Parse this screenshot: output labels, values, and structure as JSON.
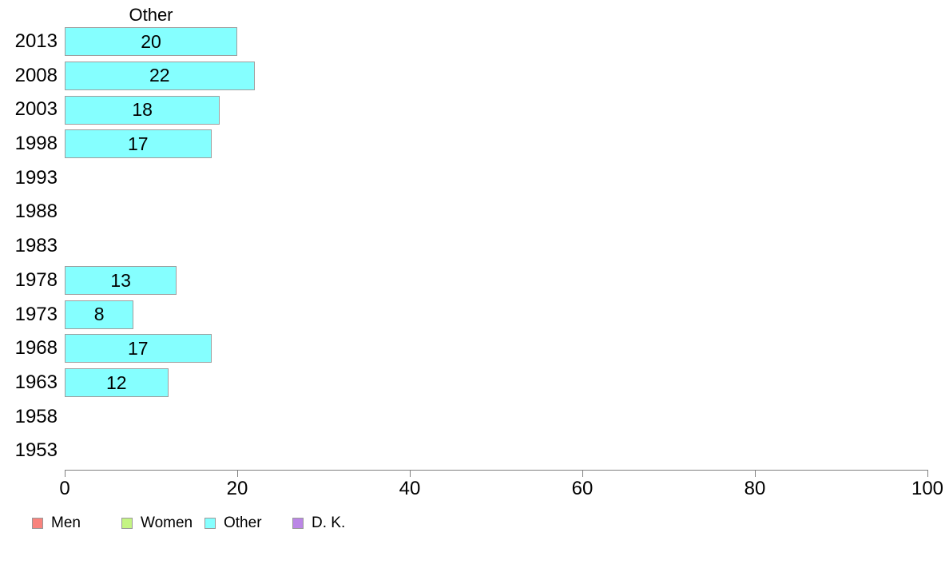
{
  "chart_data": {
    "type": "bar",
    "orientation": "horizontal",
    "title": "Other",
    "categories": [
      "2013",
      "2008",
      "2003",
      "1998",
      "1993",
      "1988",
      "1983",
      "1978",
      "1973",
      "1968",
      "1963",
      "1958",
      "1953"
    ],
    "values": [
      20,
      22,
      18,
      17,
      null,
      null,
      null,
      13,
      8,
      17,
      12,
      null,
      null
    ],
    "xlabel": "",
    "ylabel": "",
    "xlim": [
      0,
      100
    ],
    "x_ticks": [
      0,
      20,
      40,
      60,
      80,
      100
    ],
    "grid": false,
    "bar_fill_color": "#85ffff",
    "bar_border_color": "#9e9e9e",
    "legend_position": "bottom-left",
    "legend": [
      {
        "label": "Men",
        "color": "#f8837d"
      },
      {
        "label": "Women",
        "color": "#c4f483"
      },
      {
        "label": "Other",
        "color": "#85ffff"
      },
      {
        "label": "D. K.",
        "color": "#bb86e6"
      }
    ]
  }
}
